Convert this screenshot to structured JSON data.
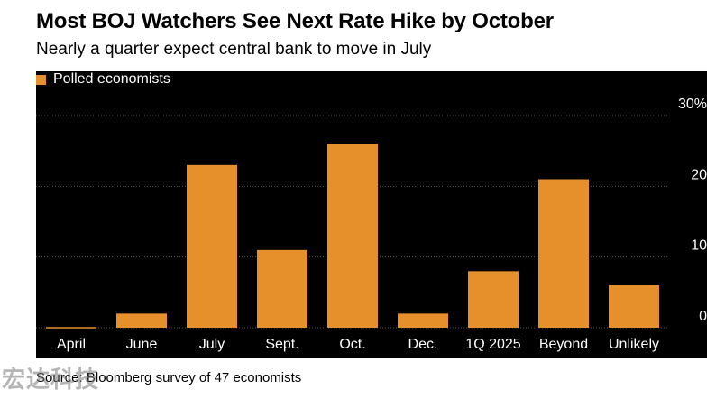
{
  "title": "Most BOJ Watchers See Next Rate Hike by October",
  "subtitle": "Nearly a quarter expect central bank to move in July",
  "source": "Source: Bloomberg survey of 47 economists",
  "watermark": "宏达科技",
  "colors": {
    "bar": "#e5902a",
    "panel": "#000000",
    "grid": "#555555",
    "text": "#ffffff"
  },
  "chart_data": {
    "type": "bar",
    "categories": [
      "April",
      "June",
      "July",
      "Sept.",
      "Oct.",
      "Dec.",
      "1Q 2025",
      "Beyond",
      "Unlikely"
    ],
    "series": [
      {
        "name": "Polled economists",
        "values": [
          0,
          2,
          23,
          11,
          26,
          2,
          8,
          21,
          6
        ]
      }
    ],
    "ylim": [
      0,
      30
    ],
    "yticks": [
      0,
      10,
      20,
      30
    ],
    "ytick_labels": [
      "0",
      "10",
      "20",
      "30%"
    ],
    "grid": true,
    "legend_position": "top-left"
  }
}
